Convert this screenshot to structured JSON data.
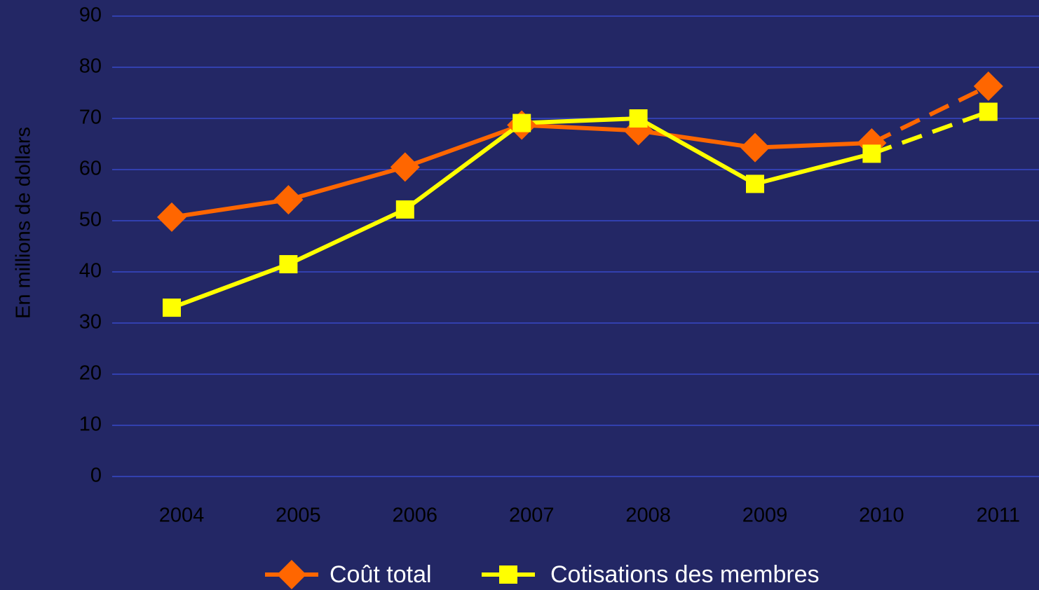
{
  "chart_data": {
    "type": "line",
    "y_label": "En millions de dollars",
    "categories": [
      "2004",
      "2005",
      "2006",
      "2007",
      "2008",
      "2009",
      "2010",
      "2011"
    ],
    "series": [
      {
        "name": "Coût total",
        "color": "#ff6600",
        "marker": "diamond",
        "values": [
          50.7,
          54.1,
          60.5,
          68.7,
          67.6,
          64.3,
          65.2,
          76.3
        ]
      },
      {
        "name": "Cotisations des membres",
        "color": "#ffff00",
        "marker": "square",
        "values": [
          33.0,
          41.5,
          52.2,
          69.1,
          70.0,
          57.2,
          63.1,
          71.3
        ]
      }
    ],
    "dashed_from_index": 6,
    "ylim": [
      0,
      90
    ],
    "yticks": [
      0,
      10,
      20,
      30,
      40,
      50,
      60,
      70,
      80,
      90
    ],
    "grid": true,
    "legend": "bottom"
  }
}
